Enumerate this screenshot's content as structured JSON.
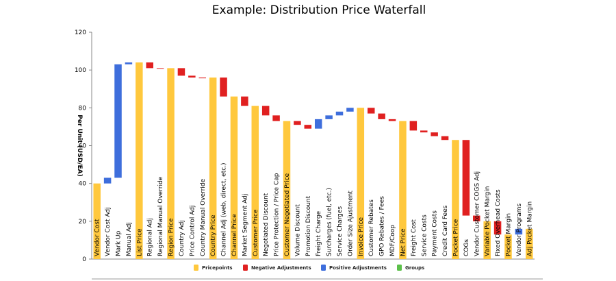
{
  "chart_data": {
    "type": "bar",
    "title": "Example: Distribution Price Waterfall",
    "ylabel": "Per Unit (USD/EA)",
    "xlabel": "",
    "ylim": [
      0,
      120
    ],
    "yticks": [
      0,
      20,
      40,
      60,
      80,
      100,
      120
    ],
    "legend_position": "bottom",
    "legend": [
      {
        "name": "Pricepoints",
        "color": "#FFC83D"
      },
      {
        "name": "Negative Adjustments",
        "color": "#E02020"
      },
      {
        "name": "Positive Adjustments",
        "color": "#3E6EDC"
      },
      {
        "name": "Groups",
        "color": "#5CC04A"
      }
    ],
    "colors": {
      "pricepoint": "#FFC83D",
      "negative": "#E02020",
      "positive": "#3E6EDC",
      "group": "#5CC04A"
    },
    "bars": [
      {
        "label": "Vendor Cost",
        "kind": "pricepoint",
        "low": 0,
        "high": 40
      },
      {
        "label": "Vendor Cost Adj",
        "kind": "positive",
        "low": 40,
        "high": 43
      },
      {
        "label": "Mark Up",
        "kind": "positive",
        "low": 43,
        "high": 103
      },
      {
        "label": "Manual Adj",
        "kind": "positive",
        "low": 103,
        "high": 104
      },
      {
        "label": "List Price",
        "kind": "pricepoint",
        "low": 0,
        "high": 104
      },
      {
        "label": "Regional Adj",
        "kind": "negative",
        "low": 101,
        "high": 104
      },
      {
        "label": "Regional Manual Override",
        "kind": "negative",
        "low": 101,
        "high": 101
      },
      {
        "label": "Region Price",
        "kind": "pricepoint",
        "low": 0,
        "high": 101
      },
      {
        "label": "Country Adj",
        "kind": "negative",
        "low": 97,
        "high": 101
      },
      {
        "label": "Price Control Adj",
        "kind": "negative",
        "low": 96,
        "high": 97
      },
      {
        "label": "Country Manual Override",
        "kind": "negative",
        "low": 96,
        "high": 96
      },
      {
        "label": "Country Price",
        "kind": "pricepoint",
        "low": 0,
        "high": 96
      },
      {
        "label": "Channel Adj (web, direct, etc.)",
        "kind": "negative",
        "low": 86,
        "high": 96
      },
      {
        "label": "Channel Price",
        "kind": "pricepoint",
        "low": 0,
        "high": 86
      },
      {
        "label": "Market Segment Adj",
        "kind": "negative",
        "low": 81,
        "high": 86
      },
      {
        "label": "Customer Price",
        "kind": "pricepoint",
        "low": 0,
        "high": 81
      },
      {
        "label": "Negotiated Discount",
        "kind": "negative",
        "low": 76,
        "high": 81
      },
      {
        "label": "Price Protection / Price Cap",
        "kind": "negative",
        "low": 73,
        "high": 76
      },
      {
        "label": "Customer Negotiated Price",
        "kind": "pricepoint",
        "low": 0,
        "high": 73
      },
      {
        "label": "Volume Discount",
        "kind": "negative",
        "low": 71,
        "high": 73
      },
      {
        "label": "Promotion Discount",
        "kind": "negative",
        "low": 69,
        "high": 71
      },
      {
        "label": "Freight Charge",
        "kind": "positive",
        "low": 69,
        "high": 74
      },
      {
        "label": "Surcharges (fuel, etc.)",
        "kind": "positive",
        "low": 74,
        "high": 76
      },
      {
        "label": "Service Charges",
        "kind": "positive",
        "low": 76,
        "high": 78
      },
      {
        "label": "Order Size Ajustment",
        "kind": "positive",
        "low": 78,
        "high": 80
      },
      {
        "label": "Invoice Price",
        "kind": "pricepoint",
        "low": 0,
        "high": 80
      },
      {
        "label": "Customer Rebates",
        "kind": "negative",
        "low": 77,
        "high": 80
      },
      {
        "label": "GPO Rebates / Fees",
        "kind": "negative",
        "low": 74,
        "high": 77
      },
      {
        "label": "MDF/Coop",
        "kind": "negative",
        "low": 73,
        "high": 74
      },
      {
        "label": "Net Price",
        "kind": "pricepoint",
        "low": 0,
        "high": 73
      },
      {
        "label": "Freight Cost",
        "kind": "negative",
        "low": 68,
        "high": 73
      },
      {
        "label": "Service Costs",
        "kind": "negative",
        "low": 67,
        "high": 68
      },
      {
        "label": "Payment Costs",
        "kind": "negative",
        "low": 65,
        "high": 67
      },
      {
        "label": "Credit Card Fees",
        "kind": "negative",
        "low": 63,
        "high": 65
      },
      {
        "label": "Pocket Price",
        "kind": "pricepoint",
        "low": 0,
        "high": 63
      },
      {
        "label": "COGs",
        "kind": "negative",
        "low": 23,
        "high": 63
      },
      {
        "label": "Vendor Customer COGS Adj",
        "kind": "negative",
        "low": 20,
        "high": 23
      },
      {
        "label": "Variable Pocket Margin",
        "kind": "pricepoint",
        "low": 0,
        "high": 20
      },
      {
        "label": "Fixed Overhead Costs",
        "kind": "negative",
        "low": 13,
        "high": 20
      },
      {
        "label": "Pocket Margin",
        "kind": "pricepoint",
        "low": 0,
        "high": 13
      },
      {
        "label": "Vendor Programs",
        "kind": "positive",
        "low": 13,
        "high": 16
      },
      {
        "label": "Adj Pocket Margin",
        "kind": "pricepoint",
        "low": 0,
        "high": 16
      }
    ]
  }
}
